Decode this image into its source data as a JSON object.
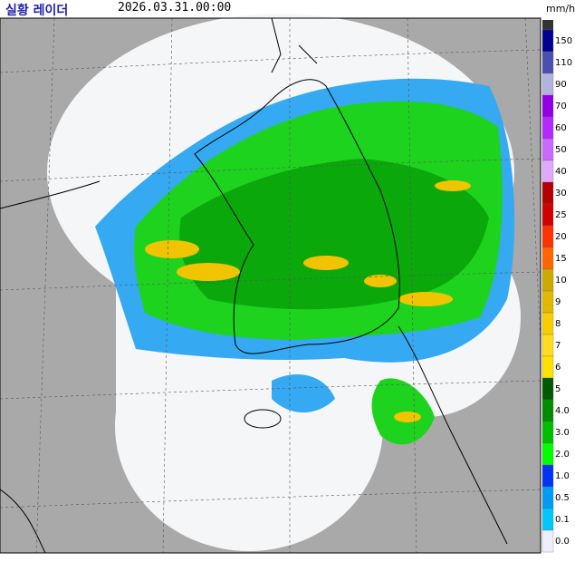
{
  "header": {
    "title": "실황 레이더",
    "time": "2026.03.31.00:00",
    "unit": "mm/h"
  },
  "legend": {
    "items": [
      {
        "label": "150",
        "color": "#000390"
      },
      {
        "label": "110",
        "color": "#4c4eb1"
      },
      {
        "label": "90",
        "color": "#b3b4de"
      },
      {
        "label": "70",
        "color": "#9300e4"
      },
      {
        "label": "60",
        "color": "#b329ff"
      },
      {
        "label": "50",
        "color": "#c969ff"
      },
      {
        "label": "40",
        "color": "#e0a9ff"
      },
      {
        "label": "30",
        "color": "#b40000"
      },
      {
        "label": "25",
        "color": "#d20000"
      },
      {
        "label": "20",
        "color": "#ff3200"
      },
      {
        "label": "15",
        "color": "#ff6600"
      },
      {
        "label": "10",
        "color": "#ccaa00"
      },
      {
        "label": "9",
        "color": "#e0b900"
      },
      {
        "label": "8",
        "color": "#f9cd00"
      },
      {
        "label": "7",
        "color": "#ffdc1f"
      },
      {
        "label": "6",
        "color": "#ffe100"
      },
      {
        "label": "5",
        "color": "#005a00"
      },
      {
        "label": "4.0",
        "color": "#008c00"
      },
      {
        "label": "3.0",
        "color": "#00be00"
      },
      {
        "label": "2.0",
        "color": "#00ff00"
      },
      {
        "label": "1.0",
        "color": "#0033f5"
      },
      {
        "label": "0.5",
        "color": "#009bf5"
      },
      {
        "label": "0.1",
        "color": "#00c8ff"
      },
      {
        "label": "0.0",
        "color": "#eeeeff"
      }
    ]
  }
}
